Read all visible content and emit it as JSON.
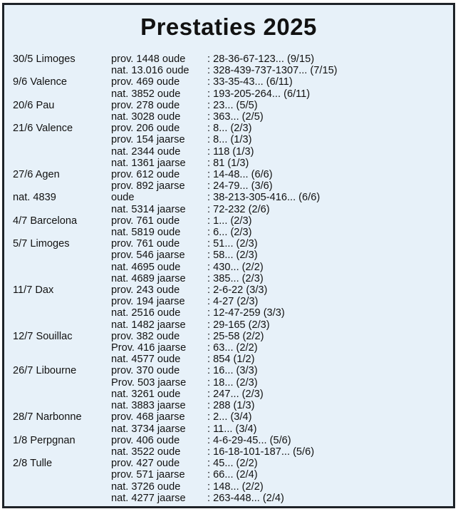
{
  "page": {
    "title": "Prestaties 2025"
  },
  "colors": {
    "page_background": "#ffffff",
    "panel_background": "#e7f1f9",
    "border": "#1e2328",
    "text": "#121212"
  },
  "results": {
    "rows": [
      {
        "event": "30/5 Limoges",
        "category": "prov. 1448 oude",
        "result": ": 28-36-67-123... (9/15)"
      },
      {
        "event": "",
        "category": "nat. 13.016 oude",
        "result": ": 328-439-737-1307... (7/15)"
      },
      {
        "event": "9/6 Valence",
        "category": "prov. 469 oude",
        "result": ": 33-35-43... (6/11)"
      },
      {
        "event": "",
        "category": "nat. 3852 oude",
        "result": ": 193-205-264... (6/11)"
      },
      {
        "event": "20/6 Pau",
        "category": "prov. 278 oude",
        "result": ": 23... (5/5)"
      },
      {
        "event": "",
        "category": "nat. 3028 oude",
        "result": ": 363... (2/5)"
      },
      {
        "event": "21/6 Valence",
        "category": "prov. 206 oude",
        "result": ": 8... (2/3)"
      },
      {
        "event": "",
        "category": "prov. 154 jaarse",
        "result": ": 8... (1/3)"
      },
      {
        "event": "",
        "category": "nat. 2344 oude",
        "result": ": 118 (1/3)"
      },
      {
        "event": "",
        "category": "nat. 1361 jaarse",
        "result": ": 81 (1/3)"
      },
      {
        "event": "27/6 Agen",
        "category": "prov. 612 oude",
        "result": ": 14-48... (6/6)"
      },
      {
        "event": "",
        "category": "prov. 892 jaarse",
        "result": ": 24-79... (3/6)"
      },
      {
        "event": "nat. 4839",
        "category": "oude",
        "result": ": 38-213-305-416... (6/6)"
      },
      {
        "event": "",
        "category": "nat. 5314 jaarse",
        "result": ": 72-232 (2/6)"
      },
      {
        "event": "4/7 Barcelona",
        "category": "prov. 761 oude",
        "result": ": 1... (2/3)"
      },
      {
        "event": "",
        "category": "nat. 5819 oude",
        "result": ": 6... (2/3)"
      },
      {
        "event": "5/7 Limoges",
        "category": "prov. 761 oude",
        "result": ": 51... (2/3)"
      },
      {
        "event": "",
        "category": "prov. 546 jaarse",
        "result": ": 58... (2/3)"
      },
      {
        "event": "",
        "category": "nat. 4695 oude",
        "result": ": 430... (2/2)"
      },
      {
        "event": "",
        "category": "nat. 4689 jaarse",
        "result": ": 385... (2/3)"
      },
      {
        "event": "11/7 Dax",
        "category": "prov. 243 oude",
        "result": ": 2-6-22 (3/3)"
      },
      {
        "event": "",
        "category": "prov. 194 jaarse",
        "result": ": 4-27 (2/3)"
      },
      {
        "event": "",
        "category": "nat. 2516 oude",
        "result": ": 12-47-259 (3/3)"
      },
      {
        "event": "",
        "category": "nat. 1482 jaarse",
        "result": ": 29-165 (2/3)"
      },
      {
        "event": "12/7 Souillac",
        "category": "prov. 382 oude",
        "result": ": 25-58 (2/2)"
      },
      {
        "event": "",
        "category": "Prov. 416 jaarse",
        "result": ": 63... (2/2)"
      },
      {
        "event": "",
        "category": "nat. 4577 oude",
        "result": ": 854 (1/2)"
      },
      {
        "event": "26/7 Libourne",
        "category": "prov. 370 oude",
        "result": ": 16... (3/3)"
      },
      {
        "event": "",
        "category": "Prov. 503 jaarse",
        "result": ": 18... (2/3)"
      },
      {
        "event": "",
        "category": "nat. 3261 oude",
        "result": ": 247... (2/3)"
      },
      {
        "event": "",
        "category": "nat. 3883 jaarse",
        "result": ": 288 (1/3)"
      },
      {
        "event": "28/7 Narbonne",
        "category": "prov. 468 jaarse",
        "result": ": 2... (3/4)"
      },
      {
        "event": "",
        "category": "nat. 3734 jaarse",
        "result": ": 11... (3/4)"
      },
      {
        "event": "1/8 Perpgnan",
        "category": "prov. 406 oude",
        "result": ": 4-6-29-45... (5/6)"
      },
      {
        "event": "",
        "category": "nat. 3522 oude",
        "result": ": 16-18-101-187... (5/6)"
      },
      {
        "event": "2/8 Tulle",
        "category": "prov. 427 oude",
        "result": ": 45... (2/2)"
      },
      {
        "event": "",
        "category": "prov. 571 jaarse",
        "result": ": 66... (2/4)"
      },
      {
        "event": "",
        "category": "nat. 3726 oude",
        "result": ": 148... (2/2)"
      },
      {
        "event": "",
        "category": "nat. 4277 jaarse",
        "result": ": 263-448... (2/4)"
      }
    ]
  }
}
